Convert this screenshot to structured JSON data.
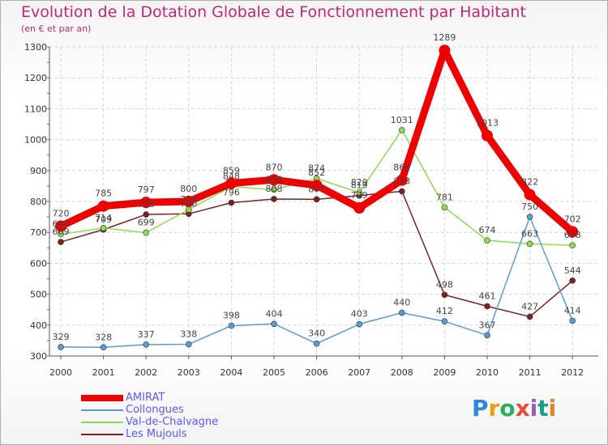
{
  "header": {
    "title": "Evolution de la Dotation Globale de Fonctionnement par Habitant",
    "subtitle": "(en € et par an)"
  },
  "logo": {
    "text": "Proxiti",
    "colors": [
      "#2e86de",
      "#f39c12",
      "#27ae60",
      "#e74c3c",
      "#9b59b6",
      "#16a085",
      "#e67e22"
    ]
  },
  "chart_data": {
    "type": "line",
    "title": "Evolution de la Dotation Globale de Fonctionnement par Habitant",
    "subtitle": "(en € et par an)",
    "xlabel": "",
    "ylabel": "",
    "ylim": [
      300,
      1300
    ],
    "yticks": [
      300,
      400,
      500,
      600,
      700,
      800,
      900,
      1000,
      1100,
      1200,
      1300
    ],
    "categories": [
      "2000",
      "2001",
      "2002",
      "2003",
      "2004",
      "2005",
      "2006",
      "2007",
      "2008",
      "2009",
      "2010",
      "2011",
      "2012"
    ],
    "legend_position": "bottom-left",
    "series": [
      {
        "name": "Les Mujouls",
        "color": "#7a2222",
        "weight": "thin",
        "values": [
          669,
          709,
          758,
          760,
          796,
          808,
          807,
          819,
          833,
          498,
          461,
          427,
          544
        ],
        "labels": [
          "669",
          "709",
          "758",
          "760",
          "796",
          "808",
          "807",
          "819",
          "833",
          "498",
          "461",
          "427",
          "544"
        ]
      },
      {
        "name": "Val-de-Chalvagne",
        "color": "#8fdc4f",
        "weight": "thin",
        "values": [
          694,
          714,
          699,
          774,
          848,
          838,
          874,
          829,
          1031,
          781,
          674,
          663,
          658
        ],
        "labels": [
          "694",
          "714",
          "699",
          "774",
          "848",
          "838",
          "874",
          "829",
          "1031",
          "781",
          "674",
          "663",
          "658"
        ]
      },
      {
        "name": "Collongues",
        "color": "#5b9bd1",
        "weight": "thin",
        "values": [
          329,
          328,
          337,
          338,
          398,
          404,
          340,
          403,
          440,
          412,
          367,
          750,
          414
        ],
        "labels": [
          "329",
          "328",
          "337",
          "338",
          "398",
          "404",
          "340",
          "403",
          "440",
          "412",
          "367",
          "750",
          "414"
        ]
      },
      {
        "name": "AMIRAT",
        "color": "#ee0000",
        "weight": "thick",
        "values": [
          720,
          785,
          797,
          800,
          859,
          870,
          852,
          779,
          869,
          1289,
          1013,
          822,
          702
        ],
        "labels": [
          "720",
          "785",
          "797",
          "800",
          "859",
          "870",
          "852",
          "779",
          "869",
          "1289",
          "1013",
          "822",
          "702"
        ]
      }
    ],
    "legend_order": [
      "AMIRAT",
      "Collongues",
      "Val-de-Chalvagne",
      "Les Mujouls"
    ]
  }
}
